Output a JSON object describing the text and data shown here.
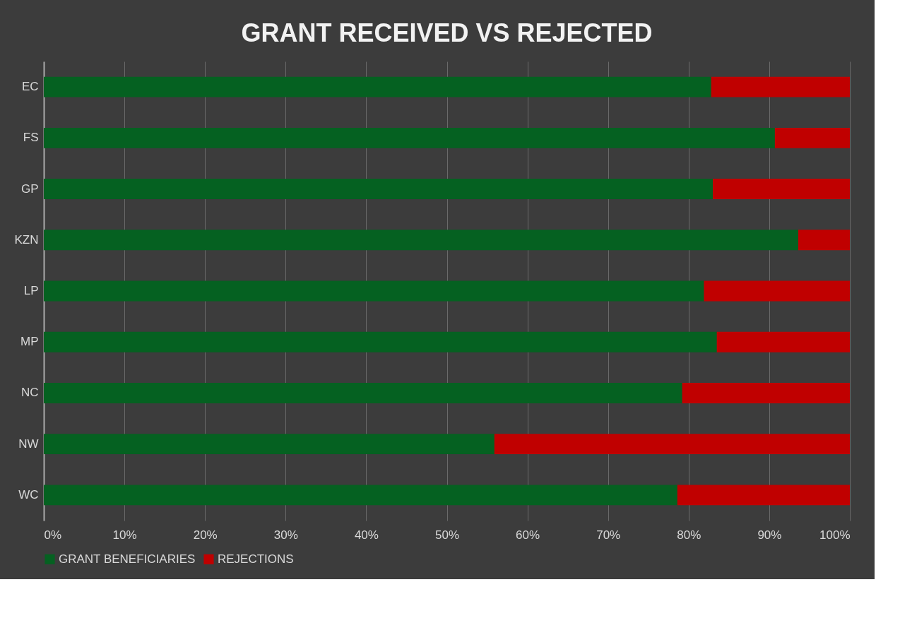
{
  "chart_data": {
    "type": "bar",
    "orientation": "horizontal",
    "stacked": true,
    "title": "GRANT RECEIVED VS REJECTED",
    "categories": [
      "EC",
      "FS",
      "GP",
      "KZN",
      "LP",
      "MP",
      "NC",
      "NW",
      "WC"
    ],
    "series": [
      {
        "name": "GRANT BENEFICIARIES",
        "color": "#056121",
        "values": [
          82.8,
          90.7,
          83.0,
          93.6,
          81.9,
          83.5,
          79.2,
          55.9,
          78.6
        ]
      },
      {
        "name": "REJECTIONS",
        "color": "#c00000",
        "values": [
          17.2,
          9.3,
          17.0,
          6.4,
          18.1,
          16.5,
          20.8,
          44.1,
          21.4
        ]
      }
    ],
    "xlim": [
      0,
      100
    ],
    "xticks": [
      {
        "value": 0,
        "label": "0%"
      },
      {
        "value": 10,
        "label": "10%"
      },
      {
        "value": 20,
        "label": "20%"
      },
      {
        "value": 30,
        "label": "30%"
      },
      {
        "value": 40,
        "label": "40%"
      },
      {
        "value": 50,
        "label": "50%"
      },
      {
        "value": 60,
        "label": "60%"
      },
      {
        "value": 70,
        "label": "70%"
      },
      {
        "value": 80,
        "label": "80%"
      },
      {
        "value": 90,
        "label": "90%"
      },
      {
        "value": 100,
        "label": "100%"
      }
    ],
    "grid": "x",
    "legend": "bottom"
  }
}
